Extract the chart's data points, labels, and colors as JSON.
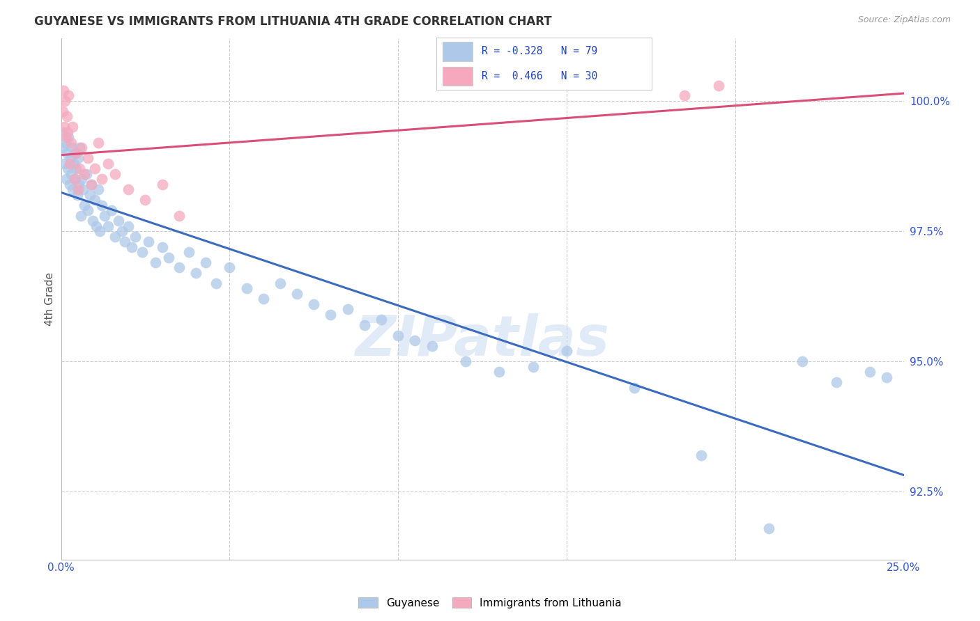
{
  "title": "GUYANESE VS IMMIGRANTS FROM LITHUANIA 4TH GRADE CORRELATION CHART",
  "source": "Source: ZipAtlas.com",
  "ylabel": "4th Grade",
  "yticks": [
    92.5,
    95.0,
    97.5,
    100.0
  ],
  "ytick_labels": [
    "92.5%",
    "95.0%",
    "97.5%",
    "100.0%"
  ],
  "xlim": [
    0.0,
    25.0
  ],
  "ylim": [
    91.2,
    101.2
  ],
  "blue_color": "#adc8e8",
  "pink_color": "#f5a8be",
  "blue_line_color": "#3a6bbf",
  "pink_line_color": "#d94f78",
  "watermark": "ZIPatlas",
  "blue_label": "Guyanese",
  "pink_label": "Immigrants from Lithuania",
  "legend_blue_r": "R = -0.328",
  "legend_blue_n": "N = 79",
  "legend_pink_r": "R =  0.466",
  "legend_pink_n": "N = 30",
  "blue_x": [
    0.05,
    0.08,
    0.1,
    0.12,
    0.15,
    0.18,
    0.2,
    0.22,
    0.25,
    0.28,
    0.3,
    0.32,
    0.35,
    0.38,
    0.4,
    0.42,
    0.45,
    0.48,
    0.5,
    0.52,
    0.55,
    0.58,
    0.6,
    0.65,
    0.7,
    0.75,
    0.8,
    0.85,
    0.9,
    0.95,
    1.0,
    1.05,
    1.1,
    1.15,
    1.2,
    1.3,
    1.4,
    1.5,
    1.6,
    1.7,
    1.8,
    1.9,
    2.0,
    2.1,
    2.2,
    2.4,
    2.6,
    2.8,
    3.0,
    3.2,
    3.5,
    3.8,
    4.0,
    4.3,
    4.6,
    5.0,
    5.5,
    6.0,
    6.5,
    7.0,
    7.5,
    8.0,
    9.0,
    10.0,
    11.0,
    12.0,
    13.0,
    15.0,
    17.0,
    19.0,
    21.0,
    22.0,
    23.0,
    24.0,
    24.5,
    8.5,
    9.5,
    10.5,
    14.0
  ],
  "blue_y": [
    99.1,
    99.4,
    98.8,
    99.2,
    98.5,
    99.0,
    98.7,
    99.3,
    98.4,
    98.9,
    98.6,
    99.1,
    98.3,
    98.8,
    99.0,
    98.5,
    98.7,
    98.2,
    98.9,
    98.4,
    99.1,
    97.8,
    98.5,
    98.3,
    98.0,
    98.6,
    97.9,
    98.2,
    98.4,
    97.7,
    98.1,
    97.6,
    98.3,
    97.5,
    98.0,
    97.8,
    97.6,
    97.9,
    97.4,
    97.7,
    97.5,
    97.3,
    97.6,
    97.2,
    97.4,
    97.1,
    97.3,
    96.9,
    97.2,
    97.0,
    96.8,
    97.1,
    96.7,
    96.9,
    96.5,
    96.8,
    96.4,
    96.2,
    96.5,
    96.3,
    96.1,
    95.9,
    95.7,
    95.5,
    95.3,
    95.0,
    94.8,
    95.2,
    94.5,
    93.2,
    91.8,
    95.0,
    94.6,
    94.8,
    94.7,
    96.0,
    95.8,
    95.4,
    94.9
  ],
  "pink_x": [
    0.05,
    0.08,
    0.1,
    0.12,
    0.15,
    0.18,
    0.2,
    0.22,
    0.25,
    0.3,
    0.35,
    0.4,
    0.45,
    0.5,
    0.55,
    0.6,
    0.7,
    0.8,
    0.9,
    1.0,
    1.1,
    1.2,
    1.4,
    1.6,
    2.0,
    2.5,
    3.0,
    3.5,
    18.5,
    19.5
  ],
  "pink_y": [
    99.8,
    100.2,
    99.5,
    100.0,
    99.3,
    99.7,
    99.4,
    100.1,
    98.8,
    99.2,
    99.5,
    98.5,
    99.0,
    98.3,
    98.7,
    99.1,
    98.6,
    98.9,
    98.4,
    98.7,
    99.2,
    98.5,
    98.8,
    98.6,
    98.3,
    98.1,
    98.4,
    97.8,
    100.1,
    100.3
  ]
}
